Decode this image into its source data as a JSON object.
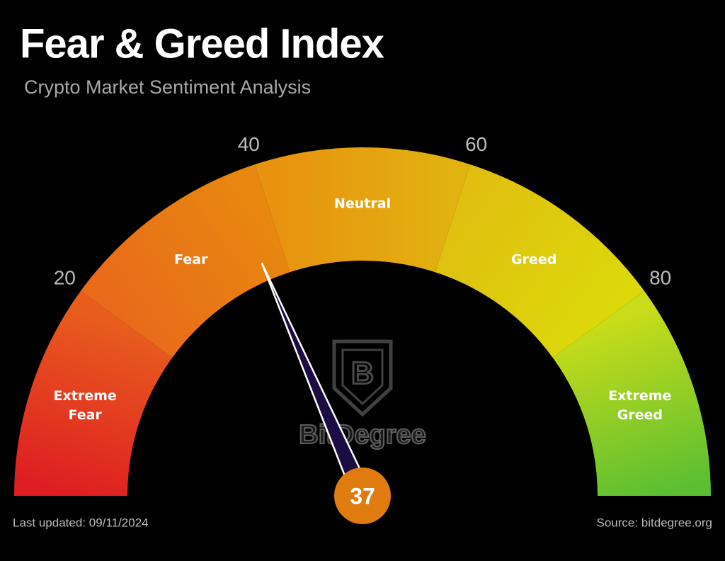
{
  "chart_data": {
    "type": "gauge",
    "title": "Fear & Greed Index",
    "subtitle": "Crypto Market Sentiment Analysis",
    "value": 37,
    "value_color": "#e07b10",
    "needle_color": "#1c0c44",
    "xlim": [
      0,
      100
    ],
    "xticks": [
      20,
      40,
      60,
      80
    ],
    "zones": [
      {
        "label": "Extreme Fear",
        "from": 0,
        "to": 20,
        "colors": [
          "#de1e22",
          "#e85d1e"
        ]
      },
      {
        "label": "Fear",
        "from": 20,
        "to": 40,
        "colors": [
          "#e96a1b",
          "#e8880f"
        ]
      },
      {
        "label": "Neutral",
        "from": 40,
        "to": 60,
        "colors": [
          "#e8920f",
          "#e2b210"
        ]
      },
      {
        "label": "Greed",
        "from": 60,
        "to": 80,
        "colors": [
          "#e0bf10",
          "#dcd80a"
        ]
      },
      {
        "label": "Extreme Greed",
        "from": 80,
        "to": 100,
        "colors": [
          "#c9dc1a",
          "#5cbf32"
        ]
      }
    ],
    "watermark": "BitDegree",
    "last_updated": "Last updated: 09/11/2024",
    "source": "Source: bitdegree.org"
  }
}
